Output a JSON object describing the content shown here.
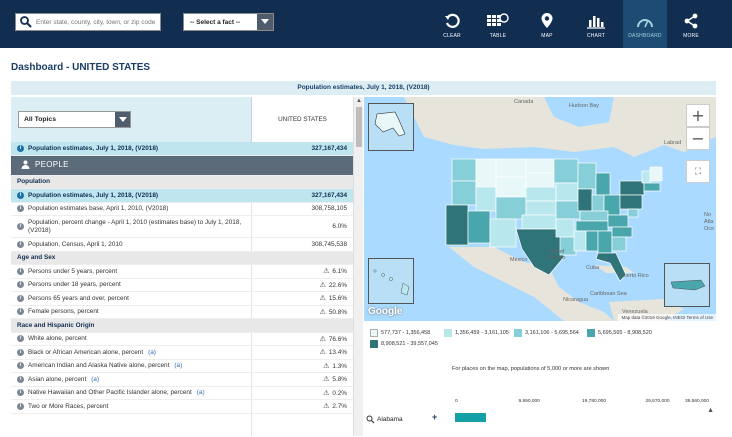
{
  "toolbar": {
    "search_placeholder": "Enter state, county, city, town, or zip code",
    "select_fact_label": "-- Select a fact --",
    "buttons": [
      {
        "label": "CLEAR",
        "icon": "clear-icon"
      },
      {
        "label": "TABLE",
        "icon": "table-icon"
      },
      {
        "label": "MAP",
        "icon": "map-pin-icon"
      },
      {
        "label": "CHART",
        "icon": "bar-chart-icon"
      },
      {
        "label": "DASHBOARD",
        "icon": "gauge-icon"
      },
      {
        "label": "MORE",
        "icon": "share-icon"
      }
    ],
    "active": "DASHBOARD"
  },
  "page": {
    "title": "Dashboard - UNITED STATES",
    "header": "Population estimates, July 1, 2018, (V2018)"
  },
  "table": {
    "topics_select": "All Topics",
    "geo_column": "UNITED STATES",
    "rows": [
      {
        "type": "sel",
        "label": "Population estimates, July 1, 2018, (V2018)",
        "value": "327,167,434",
        "info": true
      },
      {
        "type": "people",
        "label": "PEOPLE"
      },
      {
        "type": "cat",
        "label": "Population"
      },
      {
        "type": "sel",
        "label": "Population estimates, July 1, 2018, (V2018)",
        "value": "327,167,434",
        "info": true
      },
      {
        "type": "data",
        "label": "Population estimates base, April 1, 2010, (V2018)",
        "value": "308,758,105",
        "info": true
      },
      {
        "type": "tall",
        "label": "Population, percent change - April 1, 2010 (estimates base) to July 1, 2018, (V2018)",
        "value": "6.0%",
        "info": true
      },
      {
        "type": "data",
        "label": "Population, Census, April 1, 2010",
        "value": "308,745,538",
        "info": true
      },
      {
        "type": "cat",
        "label": "Age and Sex"
      },
      {
        "type": "data",
        "label": "Persons under 5 years, percent",
        "value": "6.1%",
        "info": true,
        "flag": true
      },
      {
        "type": "data",
        "label": "Persons under 18 years, percent",
        "value": "22.6%",
        "info": true,
        "flag": true
      },
      {
        "type": "data",
        "label": "Persons 65 years and over, percent",
        "value": "15.6%",
        "info": true,
        "flag": true
      },
      {
        "type": "data",
        "label": "Female persons, percent",
        "value": "50.8%",
        "info": true,
        "flag": true
      },
      {
        "type": "cat",
        "label": "Race and Hispanic Origin"
      },
      {
        "type": "data",
        "label": "White alone, percent",
        "value": "76.6%",
        "info": true,
        "flag": true
      },
      {
        "type": "data",
        "label": "Black or African American alone, percent",
        "link": "(a)",
        "value": "13.4%",
        "info": true,
        "flag": true
      },
      {
        "type": "data",
        "label": "American Indian and Alaska Native alone, percent",
        "link": "(a)",
        "value": "1.3%",
        "info": true,
        "flag": true
      },
      {
        "type": "data",
        "label": "Asian alone, percent",
        "link": "(a)",
        "value": "5.8%",
        "info": true,
        "flag": true
      },
      {
        "type": "data",
        "label": "Native Hawaiian and Other Pacific Islander alone, percent",
        "link": "(a)",
        "value": "0.2%",
        "info": true,
        "flag": true
      },
      {
        "type": "data",
        "label": "Two or More Races, percent",
        "value": "2.7%",
        "info": true,
        "flag": true
      }
    ]
  },
  "map": {
    "labels": {
      "canada": "Canada",
      "hudson_bay": "Hudson Bay",
      "labrador": "Labrad",
      "mexico": "Mexico",
      "gulf": "Gulf of Mexico",
      "cuba": "Cuba",
      "puerto_rico": "Puerto Rico",
      "caribbean": "Caribbean Sea",
      "nicaragua": "Nicaragua",
      "venezuela": "Venezuela",
      "atlantic": "No Atla Oce"
    },
    "google": "Google",
    "attribution": "Map data ©2019 Google, INEGI   Terms of Use",
    "colors": {
      "c1": "#e8f7f8",
      "c2": "#b8e8ee",
      "c3": "#86cfd8",
      "c4": "#4aa6ad",
      "c5": "#2f7479"
    },
    "legend": [
      {
        "label": "577,737 - 1,356,458",
        "color": "#e8f7f8"
      },
      {
        "label": "1,356,459 - 3,161,105",
        "color": "#b8e8ee"
      },
      {
        "label": "3,161,106 - 5,695,564",
        "color": "#86cfd8"
      },
      {
        "label": "5,695,565 - 8,908,520",
        "color": "#4aa6ad"
      },
      {
        "label": "8,908,521 - 39,557,045",
        "color": "#2f7479"
      }
    ],
    "note": "For places on the map, populations of 5,000 or more are shown"
  },
  "chart_data": {
    "type": "bar",
    "categories": [
      "Alabama"
    ],
    "values": [
      4887871
    ],
    "xlim": [
      0,
      39560000
    ],
    "ticks": [
      "0",
      "9,890,000",
      "19,780,000",
      "29,670,000",
      "39,560,000"
    ]
  }
}
